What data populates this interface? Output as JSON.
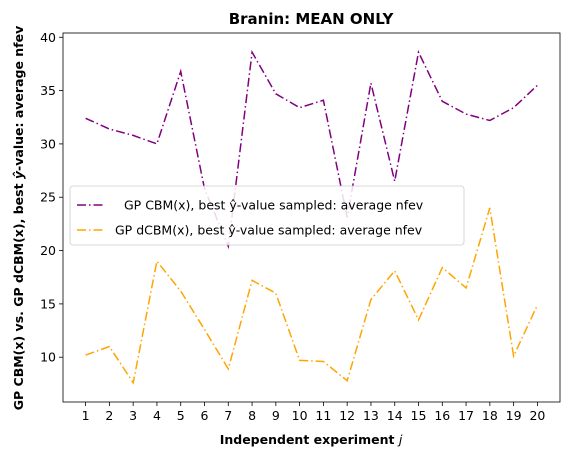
{
  "chart_data": {
    "type": "line",
    "title": "Branin: MEAN ONLY",
    "xlabel": "Independent experiment j",
    "ylabel": "GP CBM(x) vs. GP dCBM(x), best ŷ-value: average nfev",
    "x": [
      1,
      2,
      3,
      4,
      5,
      6,
      7,
      8,
      9,
      10,
      11,
      12,
      13,
      14,
      15,
      16,
      17,
      18,
      19,
      20
    ],
    "xlim": [
      0.05,
      20.95
    ],
    "ylim": [
      5.8,
      40.4
    ],
    "yticks": [
      10,
      15,
      20,
      25,
      30,
      35,
      40
    ],
    "grid": false,
    "legend_position": "center-left",
    "series": [
      {
        "name": "GP CBM(x), best ŷ-value sampled: average nfev",
        "color": "#800080",
        "linestyle": "dashdot",
        "values": [
          32.4,
          31.4,
          30.8,
          30.0,
          36.8,
          25.8,
          20.4,
          38.6,
          34.7,
          33.4,
          34.1,
          23.1,
          35.7,
          26.5,
          38.6,
          34.0,
          32.8,
          32.2,
          33.4,
          35.5
        ]
      },
      {
        "name": "GP dCBM(x), best ŷ-value sampled: average nfev",
        "color": "#FFA500",
        "linestyle": "dashdot",
        "values": [
          10.2,
          11.0,
          7.6,
          19.0,
          16.2,
          12.6,
          8.9,
          17.2,
          16.0,
          9.7,
          9.6,
          7.8,
          15.4,
          18.1,
          13.5,
          18.4,
          16.5,
          24.0,
          10.1,
          14.9
        ]
      }
    ]
  }
}
